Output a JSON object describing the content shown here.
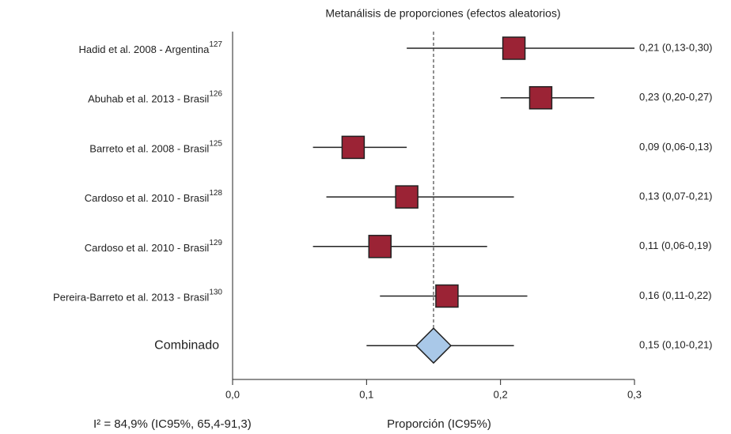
{
  "chart_data": {
    "type": "forest",
    "title": "Metanálisis de proporciones (efectos aleatorios)",
    "x_label": "Proporción (IC95%)",
    "footnote": "I² = 84,9% (IC95%, 65,4-91,3)",
    "categories": [
      "Hadid  et al. 2008 - Argentina",
      "Abuhab et al. 2013 - Brasil",
      "Barreto et al. 2008 - Brasil",
      "Cardoso et al. 2010 - Brasil",
      "Cardoso et al. 2010 - Brasil",
      "Pereira-Barreto et al. 2013 - Brasil"
    ],
    "superscripts": [
      "127",
      "126",
      "125",
      "128",
      "129",
      "130"
    ],
    "values": [
      0.21,
      0.23,
      0.09,
      0.13,
      0.11,
      0.16
    ],
    "lower": [
      0.13,
      0.2,
      0.06,
      0.07,
      0.06,
      0.11
    ],
    "upper": [
      0.3,
      0.27,
      0.13,
      0.21,
      0.19,
      0.22
    ],
    "value_labels": [
      "0,21 (0,13-0,30)",
      "0,23 (0,20-0,27)",
      "0,09 (0,06-0,13)",
      "0,13 (0,07-0,21)",
      "0,11 (0,06-0,19)",
      "0,16 (0,11-0,22)"
    ],
    "color": "#9b2335",
    "pooled": {
      "name": "Combinado",
      "value": 0.15,
      "lower": 0.1,
      "upper": 0.21,
      "value_label": "0,15 (0,10-0,21)",
      "color": "#a9c8e8"
    },
    "xlim": [
      0,
      0.3
    ],
    "xticks": [
      {
        "value": 0,
        "label": "0,0"
      },
      {
        "value": 0.1,
        "label": "0,1"
      },
      {
        "value": 0.2,
        "label": "0,2"
      },
      {
        "value": 0.3,
        "label": "0,3"
      }
    ]
  }
}
